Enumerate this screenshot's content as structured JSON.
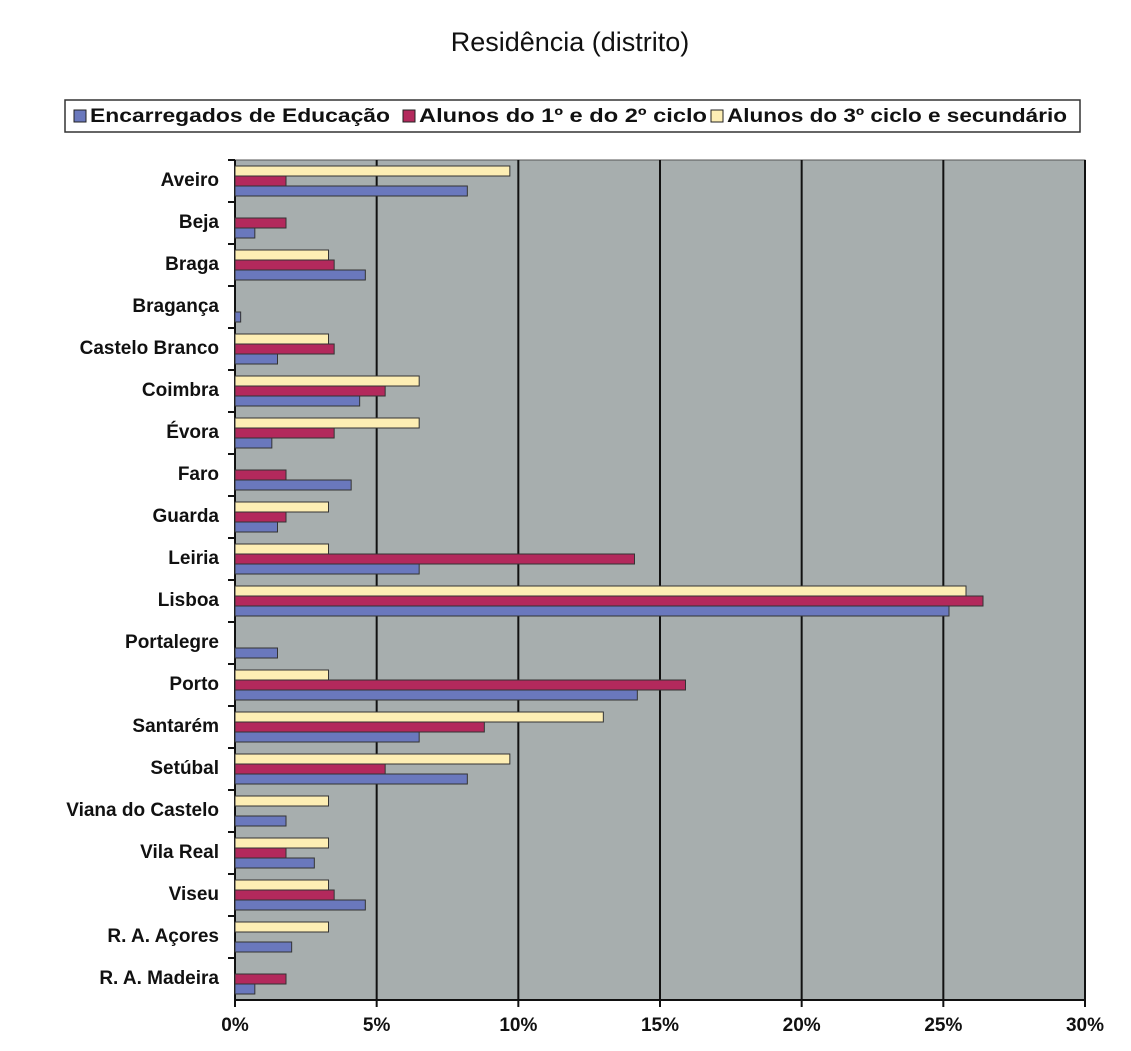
{
  "chart_data": {
    "type": "barh",
    "title": "Residência (distrito)",
    "categories": [
      "Aveiro",
      "Beja",
      "Braga",
      "Bragança",
      "Castelo Branco",
      "Coimbra",
      "Évora",
      "Faro",
      "Guarda",
      "Leiria",
      "Lisboa",
      "Portalegre",
      "Porto",
      "Santarém",
      "Setúbal",
      "Viana do Castelo",
      "Vila Real",
      "Viseu",
      "R. A. Açores",
      "R. A. Madeira"
    ],
    "series": [
      {
        "name": "Encarregados de Educação",
        "color": "#6a78bd",
        "values": [
          8.2,
          0.7,
          4.6,
          0.2,
          1.5,
          4.4,
          1.3,
          4.1,
          1.5,
          6.5,
          25.2,
          1.5,
          14.2,
          6.5,
          8.2,
          1.8,
          2.8,
          4.6,
          2.0,
          0.7
        ]
      },
      {
        "name": "Alunos do 1º e do 2º ciclo",
        "color": "#b3295c",
        "values": [
          1.8,
          1.8,
          3.5,
          0,
          3.5,
          5.3,
          3.5,
          1.8,
          1.8,
          14.1,
          26.4,
          0,
          15.9,
          8.8,
          5.3,
          0,
          1.8,
          3.5,
          0,
          1.8
        ]
      },
      {
        "name": "Alunos do 3º ciclo e secundário",
        "color": "#fdeeb4",
        "values": [
          9.7,
          0,
          3.3,
          0,
          3.3,
          6.5,
          6.5,
          0,
          3.3,
          3.3,
          25.8,
          0,
          3.3,
          13.0,
          9.7,
          3.3,
          3.3,
          3.3,
          3.3,
          0
        ]
      }
    ],
    "xlim": [
      0,
      30
    ],
    "xticks": [
      {
        "value": 0,
        "label": "0%"
      },
      {
        "value": 5,
        "label": "5%"
      },
      {
        "value": 10,
        "label": "10%"
      },
      {
        "value": 15,
        "label": "15%"
      },
      {
        "value": 20,
        "label": "20%"
      },
      {
        "value": 25,
        "label": "25%"
      },
      {
        "value": 30,
        "label": "30%"
      }
    ],
    "grid": true,
    "background": "#a7aeae",
    "legend": "top"
  }
}
